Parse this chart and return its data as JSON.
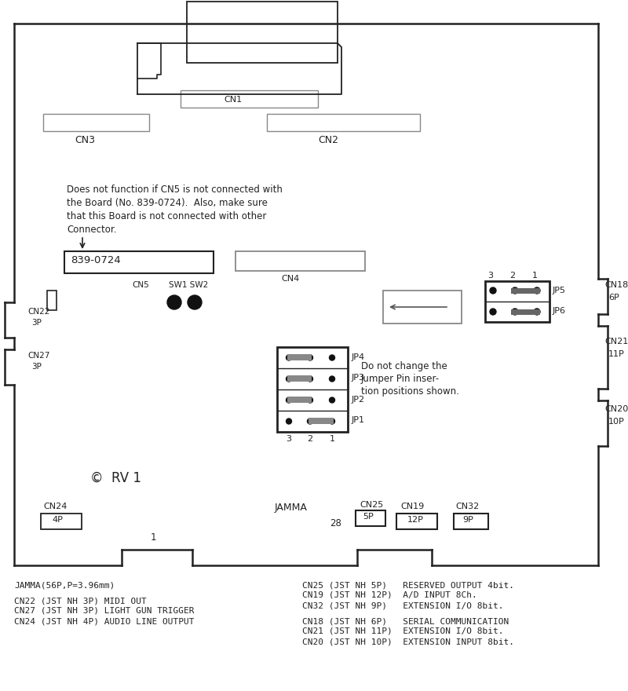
{
  "figsize": [
    8.0,
    8.8
  ],
  "dpi": 100,
  "footer_lines_left": [
    "JAMMA(56P,P=3.96mm)",
    "",
    "CN22 (JST NH 3P) MIDI OUT",
    "CN27 (JST NH 3P) LIGHT GUN TRIGGER",
    "CN24 (JST NH 4P) AUDIO LINE OUTPUT"
  ],
  "footer_lines_right": [
    "CN25 (JST NH 5P)   RESERVED OUTPUT 4bit.",
    "CN19 (JST NH 12P)  A/D INPUT 8Ch.",
    "CN32 (JST NH 9P)   EXTENSION I/O 8bit.",
    "",
    "CN18 (JST NH 6P)   SERIAL COMMUNICATION",
    "CN21 (JST NH 11P)  EXTENSION I/O 8bit.",
    "CN20 (JST NH 10P)  EXTENSION INPUT 8bit."
  ]
}
